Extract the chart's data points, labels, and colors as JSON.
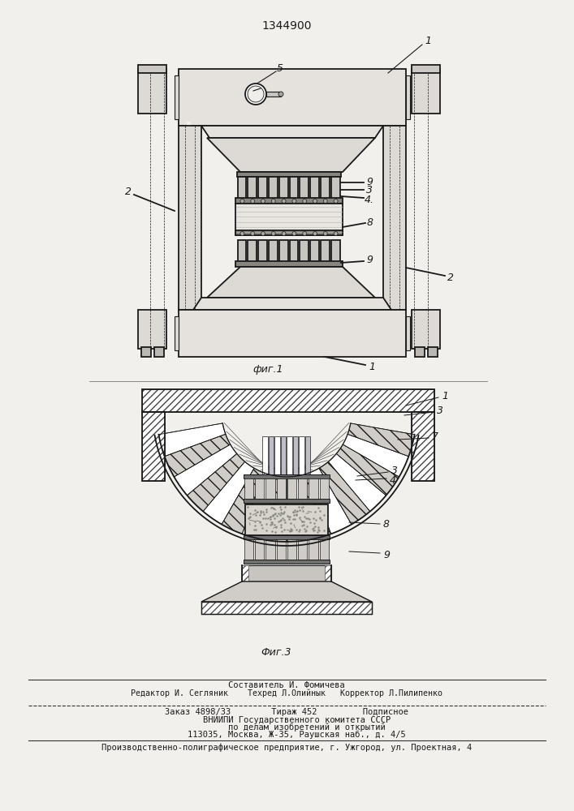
{
  "patent_number": "1344900",
  "fig1_caption": "фиг.1",
  "fig3_caption": "Фиг.3",
  "bg_color": "#f2f0ec",
  "line_color": "#1a1a1a",
  "footer_lines": [
    "Составитель И. Фомичева",
    "Редактор И. Сегляник    Техред Л.Олийнык   Корректор Л.Пилипенко",
    "Заказ 4898/33        Тираж 452         Подписное",
    "    ВНИИПИ Государственного комитета СССР",
    "        по делам изобретений и открытий",
    "    113035, Москва, Ж-35, Раушская наб., д. 4/5",
    "Производственно-полиграфическое предприятие, г. Ужгород, ул. Проектная, 4"
  ]
}
